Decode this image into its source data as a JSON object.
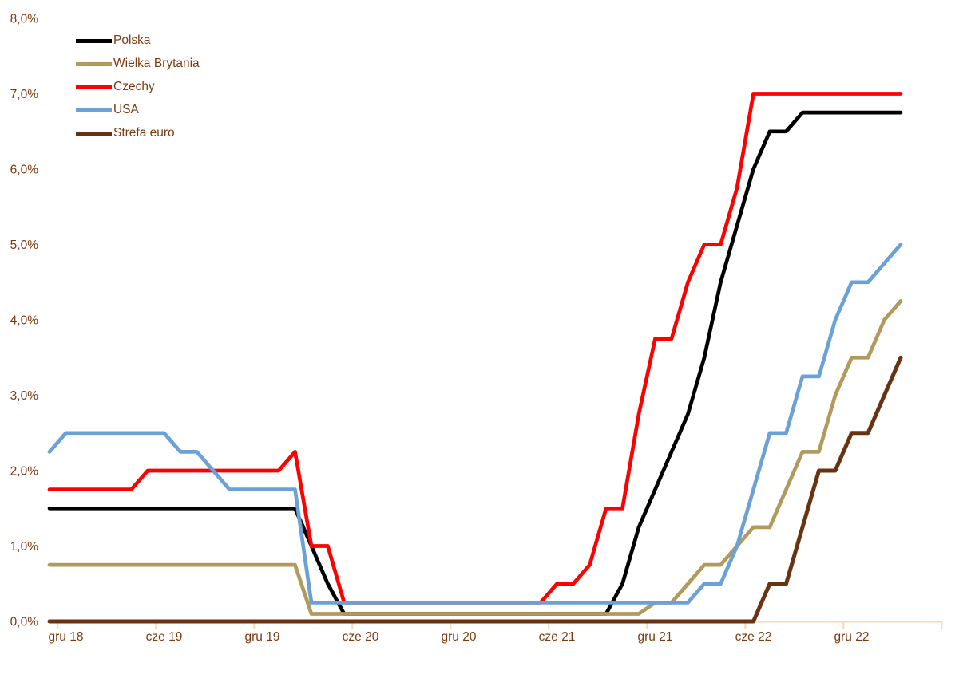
{
  "chart_data": {
    "type": "line",
    "title": "",
    "grid": false,
    "legend_position": "top-left",
    "label_color": "#7C3A10",
    "axis_color": "#F8DCBA",
    "background_color": "#FFFFFF",
    "ylim": [
      0,
      8
    ],
    "y_tick_labels": [
      "0,0%",
      "1,0%",
      "2,0%",
      "3,0%",
      "4,0%",
      "5,0%",
      "6,0%",
      "7,0%",
      "8,0%"
    ],
    "x_tick_labels": [
      "gru 18",
      "cze 19",
      "gru 19",
      "cze 20",
      "gru 20",
      "cze 21",
      "gru 21",
      "cze 22",
      "gru 22"
    ],
    "x_axis": {
      "first_point": "2018-11",
      "last_point": "2023-03",
      "interval": "monthly",
      "points_per_series": 53
    },
    "series": [
      {
        "name": "Polska",
        "color": "#000000",
        "values": [
          1.5,
          1.5,
          1.5,
          1.5,
          1.5,
          1.5,
          1.5,
          1.5,
          1.5,
          1.5,
          1.5,
          1.5,
          1.5,
          1.5,
          1.5,
          1.5,
          1.0,
          0.5,
          0.1,
          0.1,
          0.1,
          0.1,
          0.1,
          0.1,
          0.1,
          0.1,
          0.1,
          0.1,
          0.1,
          0.1,
          0.1,
          0.1,
          0.1,
          0.1,
          0.1,
          0.5,
          1.25,
          1.75,
          2.25,
          2.75,
          3.5,
          4.5,
          5.25,
          6.0,
          6.5,
          6.5,
          6.75,
          6.75,
          6.75,
          6.75,
          6.75,
          6.75,
          6.75
        ]
      },
      {
        "name": "Wielka Brytania",
        "color": "#B29A5D",
        "values": [
          0.75,
          0.75,
          0.75,
          0.75,
          0.75,
          0.75,
          0.75,
          0.75,
          0.75,
          0.75,
          0.75,
          0.75,
          0.75,
          0.75,
          0.75,
          0.75,
          0.1,
          0.1,
          0.1,
          0.1,
          0.1,
          0.1,
          0.1,
          0.1,
          0.1,
          0.1,
          0.1,
          0.1,
          0.1,
          0.1,
          0.1,
          0.1,
          0.1,
          0.1,
          0.1,
          0.1,
          0.1,
          0.25,
          0.25,
          0.5,
          0.75,
          0.75,
          1.0,
          1.25,
          1.25,
          1.75,
          2.25,
          2.25,
          3.0,
          3.5,
          3.5,
          4.0,
          4.25
        ]
      },
      {
        "name": "Czechy",
        "color": "#FF0000",
        "values": [
          1.75,
          1.75,
          1.75,
          1.75,
          1.75,
          1.75,
          2.0,
          2.0,
          2.0,
          2.0,
          2.0,
          2.0,
          2.0,
          2.0,
          2.0,
          2.25,
          1.0,
          1.0,
          0.25,
          0.25,
          0.25,
          0.25,
          0.25,
          0.25,
          0.25,
          0.25,
          0.25,
          0.25,
          0.25,
          0.25,
          0.25,
          0.5,
          0.5,
          0.75,
          1.5,
          1.5,
          2.75,
          3.75,
          3.75,
          4.5,
          5.0,
          5.0,
          5.75,
          7.0,
          7.0,
          7.0,
          7.0,
          7.0,
          7.0,
          7.0,
          7.0,
          7.0,
          7.0
        ]
      },
      {
        "name": "USA",
        "color": "#6AA2D8",
        "values": [
          2.25,
          2.5,
          2.5,
          2.5,
          2.5,
          2.5,
          2.5,
          2.5,
          2.25,
          2.25,
          2.0,
          1.75,
          1.75,
          1.75,
          1.75,
          1.75,
          0.25,
          0.25,
          0.25,
          0.25,
          0.25,
          0.25,
          0.25,
          0.25,
          0.25,
          0.25,
          0.25,
          0.25,
          0.25,
          0.25,
          0.25,
          0.25,
          0.25,
          0.25,
          0.25,
          0.25,
          0.25,
          0.25,
          0.25,
          0.25,
          0.5,
          0.5,
          1.0,
          1.75,
          2.5,
          2.5,
          3.25,
          3.25,
          4.0,
          4.5,
          4.5,
          4.75,
          5.0
        ]
      },
      {
        "name": "Strefa euro",
        "color": "#683311",
        "values": [
          0,
          0,
          0,
          0,
          0,
          0,
          0,
          0,
          0,
          0,
          0,
          0,
          0,
          0,
          0,
          0,
          0,
          0,
          0,
          0,
          0,
          0,
          0,
          0,
          0,
          0,
          0,
          0,
          0,
          0,
          0,
          0,
          0,
          0,
          0,
          0,
          0,
          0,
          0,
          0,
          0,
          0,
          0,
          0,
          0.5,
          0.5,
          1.25,
          2.0,
          2.0,
          2.5,
          2.5,
          3.0,
          3.5
        ]
      }
    ],
    "line_width": 4.7,
    "tick_every_months": 6
  }
}
